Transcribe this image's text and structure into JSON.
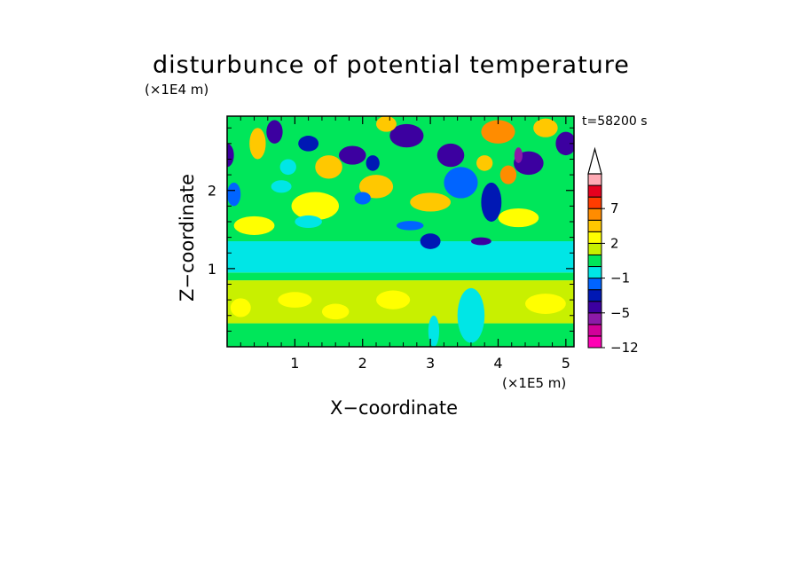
{
  "chart_data": {
    "type": "heatmap",
    "title": "disturbunce of potential temperature",
    "xlabel": "X−coordinate",
    "ylabel": "Z−coordinate",
    "x_unit": "(×1E5 m)",
    "y_unit": "(×1E4 m)",
    "time_label": "t=58200 s",
    "xlim": [
      0,
      5.12
    ],
    "ylim": [
      0,
      2.95
    ],
    "x_ticks": [
      1,
      2,
      3,
      4,
      5
    ],
    "y_ticks": [
      1,
      2
    ],
    "x_tick_labels": [
      "1",
      "2",
      "3",
      "4",
      "5"
    ],
    "y_tick_labels": [
      "1",
      "2"
    ],
    "colorbar": {
      "levels": [
        -12,
        -9,
        -7,
        -5,
        -3,
        -2,
        -1,
        0,
        1,
        2,
        3,
        5,
        7,
        9,
        12
      ],
      "labels": [
        "−12",
        "−5",
        "−1",
        "2",
        "7"
      ],
      "label_values": [
        -12,
        -5,
        -1,
        2,
        7
      ],
      "colors": [
        "#ff00b4",
        "#d2009a",
        "#8c1aa8",
        "#3c00a0",
        "#0018b4",
        "#0064ff",
        "#00e6e6",
        "#00e65a",
        "#c8f000",
        "#ffff00",
        "#ffc800",
        "#ff8c00",
        "#ff3c00",
        "#e6001e",
        "#ffaab4"
      ],
      "extend_max": true
    },
    "fields": [
      {
        "name": "band",
        "x0": 0,
        "x1": 5.12,
        "z0": 0,
        "z1": 0.3,
        "value": 0.5
      },
      {
        "name": "band",
        "x0": 0,
        "x1": 5.12,
        "z0": 0.3,
        "z1": 0.85,
        "value": 1.5
      },
      {
        "name": "band",
        "x0": 0,
        "x1": 5.12,
        "z0": 0.85,
        "z1": 0.95,
        "value": 0.5
      },
      {
        "name": "band",
        "x0": 0,
        "x1": 5.12,
        "z0": 0.95,
        "z1": 1.35,
        "value": -0.5
      },
      {
        "name": "band",
        "x0": 0,
        "x1": 5.12,
        "z0": 1.35,
        "z1": 2.95,
        "value": 0.5
      },
      {
        "name": "blob",
        "x": 0.2,
        "z": 0.5,
        "rx": 0.15,
        "rz": 0.12,
        "value": 2.5
      },
      {
        "name": "blob",
        "x": 1.0,
        "z": 0.6,
        "rx": 0.25,
        "rz": 0.1,
        "value": 2.5
      },
      {
        "name": "blob",
        "x": 1.6,
        "z": 0.45,
        "rx": 0.2,
        "rz": 0.1,
        "value": 2.5
      },
      {
        "name": "blob",
        "x": 2.45,
        "z": 0.6,
        "rx": 0.25,
        "rz": 0.12,
        "value": 2.5
      },
      {
        "name": "blob",
        "x": 4.7,
        "z": 0.55,
        "rx": 0.3,
        "rz": 0.13,
        "value": 2.5
      },
      {
        "name": "blob",
        "x": 3.6,
        "z": 0.4,
        "rx": 0.2,
        "rz": 0.35,
        "value": -0.5
      },
      {
        "name": "blob",
        "x": 3.05,
        "z": 0.2,
        "rx": 0.08,
        "rz": 0.2,
        "value": -0.5
      },
      {
        "name": "blob",
        "x": 0.4,
        "z": 1.55,
        "rx": 0.3,
        "rz": 0.12,
        "value": 2.5
      },
      {
        "name": "blob",
        "x": 1.3,
        "z": 1.8,
        "rx": 0.35,
        "rz": 0.18,
        "value": 2.5
      },
      {
        "name": "blob",
        "x": 2.2,
        "z": 2.05,
        "rx": 0.25,
        "rz": 0.15,
        "value": 4
      },
      {
        "name": "blob",
        "x": 3.0,
        "z": 1.85,
        "rx": 0.3,
        "rz": 0.12,
        "value": 4
      },
      {
        "name": "blob",
        "x": 4.3,
        "z": 1.65,
        "rx": 0.3,
        "rz": 0.12,
        "value": 2.5
      },
      {
        "name": "blob",
        "x": 0.1,
        "z": 1.95,
        "rx": 0.1,
        "rz": 0.15,
        "value": -1.5
      },
      {
        "name": "blob",
        "x": 1.2,
        "z": 1.6,
        "rx": 0.2,
        "rz": 0.08,
        "value": -0.5
      },
      {
        "name": "blob",
        "x": 3.0,
        "z": 1.35,
        "rx": 0.15,
        "rz": 0.1,
        "value": -2.5
      },
      {
        "name": "blob",
        "x": 3.75,
        "z": 1.35,
        "rx": 0.15,
        "rz": 0.05,
        "value": -4
      },
      {
        "name": "blob",
        "x": 2.7,
        "z": 1.55,
        "rx": 0.2,
        "rz": 0.06,
        "value": -1.5
      },
      {
        "name": "blob",
        "x": 3.45,
        "z": 2.1,
        "rx": 0.25,
        "rz": 0.2,
        "value": -1.5
      },
      {
        "name": "blob",
        "x": 0.0,
        "z": 2.45,
        "rx": 0.1,
        "rz": 0.15,
        "value": -4
      },
      {
        "name": "blob",
        "x": 0.45,
        "z": 2.6,
        "rx": 0.12,
        "rz": 0.2,
        "value": 4
      },
      {
        "name": "blob",
        "x": 0.7,
        "z": 2.75,
        "rx": 0.12,
        "rz": 0.15,
        "value": -4
      },
      {
        "name": "blob",
        "x": 1.2,
        "z": 2.6,
        "rx": 0.15,
        "rz": 0.1,
        "value": -2.5
      },
      {
        "name": "blob",
        "x": 1.85,
        "z": 2.45,
        "rx": 0.2,
        "rz": 0.12,
        "value": -4
      },
      {
        "name": "blob",
        "x": 2.65,
        "z": 2.7,
        "rx": 0.25,
        "rz": 0.15,
        "value": -5
      },
      {
        "name": "blob",
        "x": 3.3,
        "z": 2.45,
        "rx": 0.2,
        "rz": 0.15,
        "value": -4
      },
      {
        "name": "blob",
        "x": 4.45,
        "z": 2.35,
        "rx": 0.22,
        "rz": 0.15,
        "value": -4
      },
      {
        "name": "blob",
        "x": 5.0,
        "z": 2.6,
        "rx": 0.15,
        "rz": 0.15,
        "value": -4
      },
      {
        "name": "blob",
        "x": 4.0,
        "z": 2.75,
        "rx": 0.25,
        "rz": 0.15,
        "value": 6
      },
      {
        "name": "blob",
        "x": 3.8,
        "z": 2.35,
        "rx": 0.12,
        "rz": 0.1,
        "value": 4
      },
      {
        "name": "blob",
        "x": 4.7,
        "z": 2.8,
        "rx": 0.18,
        "rz": 0.12,
        "value": 4
      },
      {
        "name": "blob",
        "x": 2.35,
        "z": 2.85,
        "rx": 0.15,
        "rz": 0.1,
        "value": 4
      },
      {
        "name": "blob",
        "x": 1.5,
        "z": 2.3,
        "rx": 0.2,
        "rz": 0.15,
        "value": 4
      },
      {
        "name": "blob",
        "x": 2.15,
        "z": 2.35,
        "rx": 0.1,
        "rz": 0.1,
        "value": -2.5
      },
      {
        "name": "blob",
        "x": 4.15,
        "z": 2.2,
        "rx": 0.12,
        "rz": 0.12,
        "value": 6
      },
      {
        "name": "blob",
        "x": 4.3,
        "z": 2.45,
        "rx": 0.06,
        "rz": 0.1,
        "value": -6
      },
      {
        "name": "blob",
        "x": 0.9,
        "z": 2.3,
        "rx": 0.12,
        "rz": 0.1,
        "value": -0.5
      },
      {
        "name": "blob",
        "x": 3.9,
        "z": 1.85,
        "rx": 0.15,
        "rz": 0.25,
        "value": -2.5
      },
      {
        "name": "blob",
        "x": 2.0,
        "z": 1.9,
        "rx": 0.12,
        "rz": 0.08,
        "value": -1.5
      },
      {
        "name": "blob",
        "x": 0.8,
        "z": 2.05,
        "rx": 0.15,
        "rz": 0.08,
        "value": -0.5
      }
    ]
  }
}
